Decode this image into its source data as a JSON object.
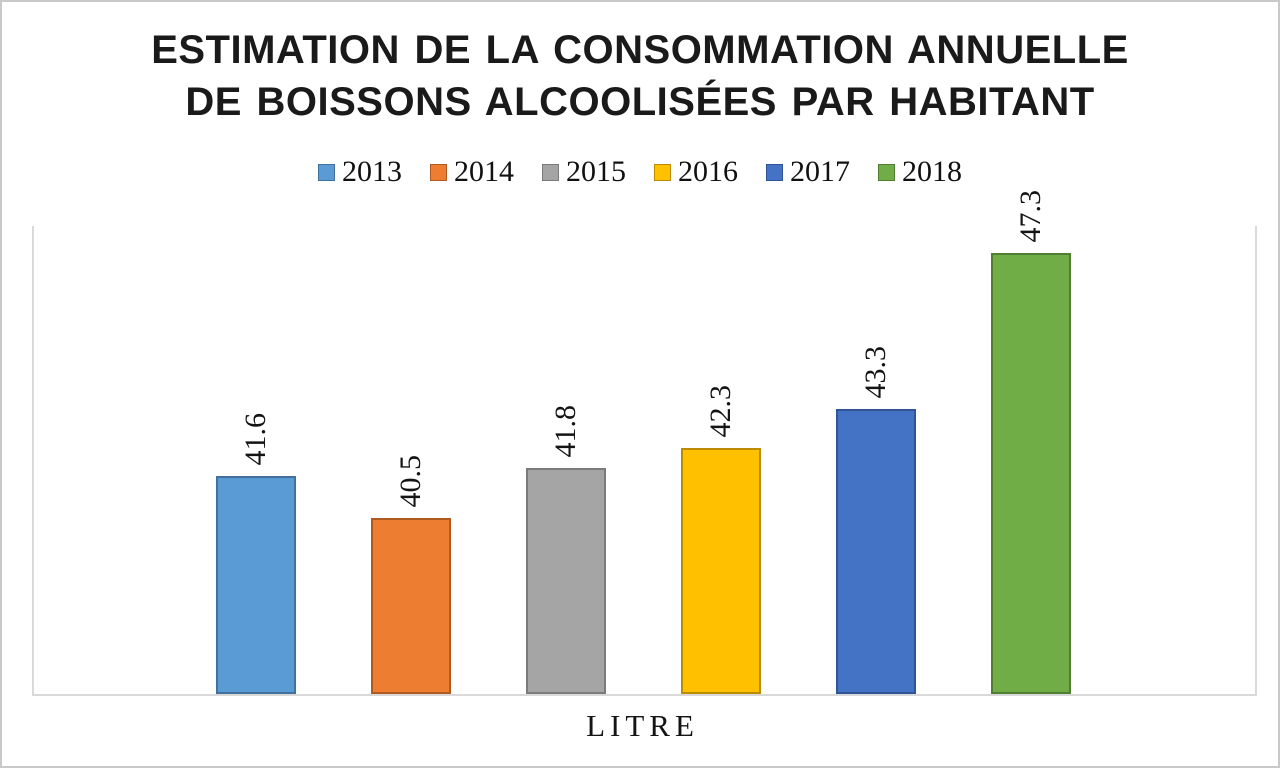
{
  "chart_data": {
    "type": "bar",
    "title": "ESTIMATION DE LA CONSOMMATION ANNUELLE DE BOISSONS ALCOOLISÉES PAR HABITANT",
    "title_lines": [
      "ESTIMATION DE LA CONSOMMATION ANNUELLE",
      "DE BOISSONS ALCOOLISÉES PAR HABITANT"
    ],
    "xlabel": "LITRE",
    "ylabel": "",
    "ylim": [
      36,
      48
    ],
    "grid": false,
    "legend_position": "top",
    "value_label_rotation": -90,
    "categories": [
      "LITRE"
    ],
    "series": [
      {
        "name": "2013",
        "value": 41.6,
        "color": "#5B9BD5",
        "border_color": "#41719C"
      },
      {
        "name": "2014",
        "value": 40.5,
        "color": "#ED7D31",
        "border_color": "#AE5A21"
      },
      {
        "name": "2015",
        "value": 41.8,
        "color": "#A5A5A5",
        "border_color": "#7B7B7B"
      },
      {
        "name": "2016",
        "value": 42.3,
        "color": "#FFC000",
        "border_color": "#BC8C00"
      },
      {
        "name": "2017",
        "value": 43.3,
        "color": "#4472C4",
        "border_color": "#2F5597"
      },
      {
        "name": "2018",
        "value": 47.3,
        "color": "#70AD47",
        "border_color": "#507E32"
      }
    ]
  }
}
